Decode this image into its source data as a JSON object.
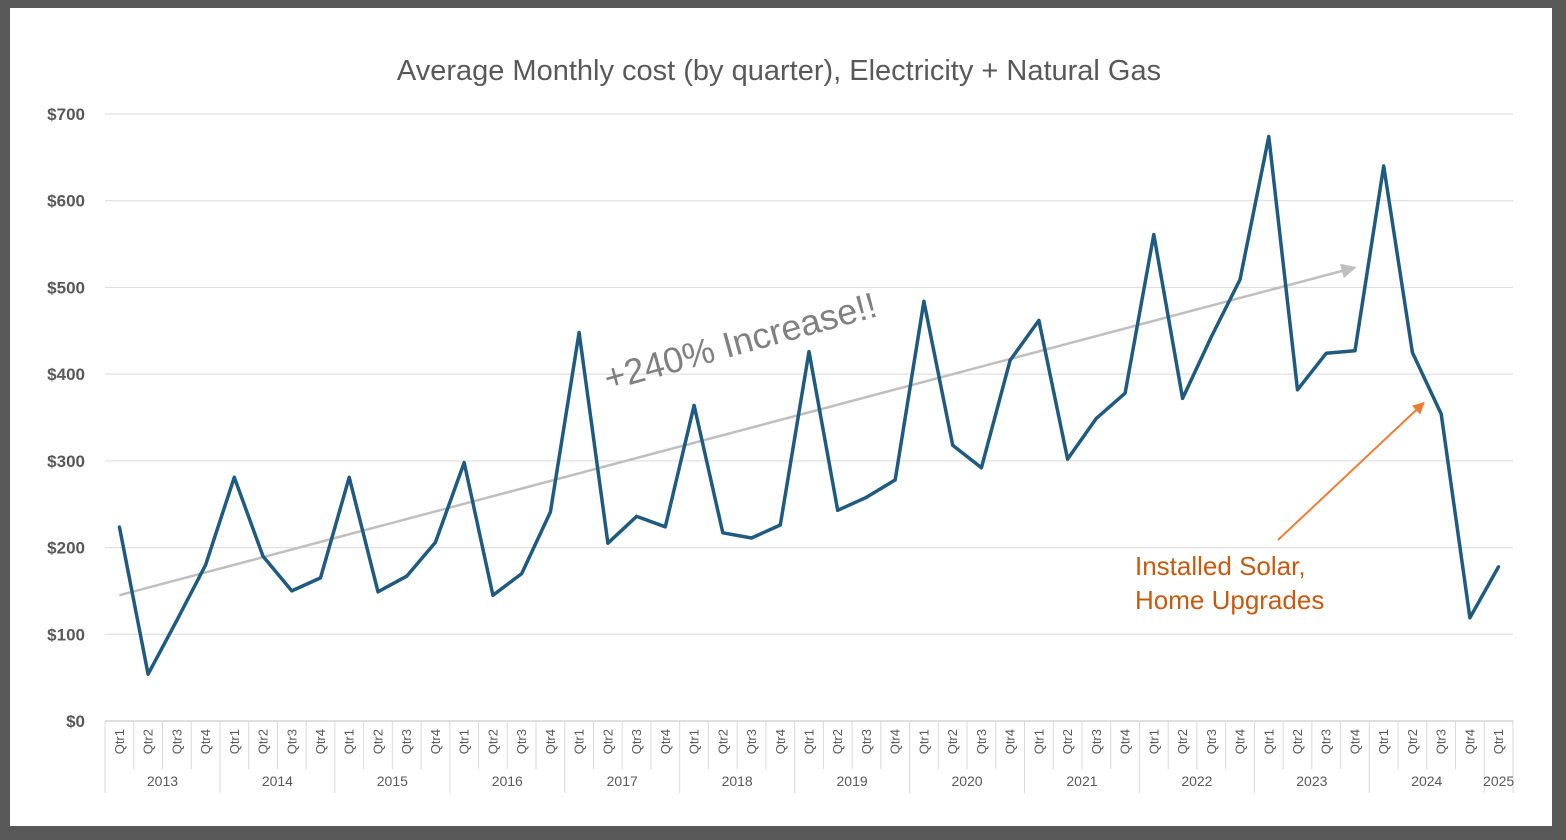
{
  "chart_data": {
    "type": "line",
    "title": "Average Monthly cost (by quarter), Electricity + Natural Gas",
    "xlabel": "",
    "ylabel": "",
    "ylim": [
      0,
      700
    ],
    "yticks": [
      0,
      100,
      200,
      300,
      400,
      500,
      600,
      700
    ],
    "ytick_labels": [
      "$0",
      "$100",
      "$200",
      "$300",
      "$400",
      "$500",
      "$600",
      "$700"
    ],
    "grid": true,
    "colors": {
      "line": "#1f5b80",
      "trend": "#bfbfbf",
      "annotation": "#c55a11",
      "arrow": "#ed7d31",
      "text": "#595959"
    },
    "years": [
      {
        "label": "2013",
        "quarters": [
          "Qtr1",
          "Qtr2",
          "Qtr3",
          "Qtr4"
        ]
      },
      {
        "label": "2014",
        "quarters": [
          "Qtr1",
          "Qtr2",
          "Qtr3",
          "Qtr4"
        ]
      },
      {
        "label": "2015",
        "quarters": [
          "Qtr1",
          "Qtr2",
          "Qtr3",
          "Qtr4"
        ]
      },
      {
        "label": "2016",
        "quarters": [
          "Qtr1",
          "Qtr2",
          "Qtr3",
          "Qtr4"
        ]
      },
      {
        "label": "2017",
        "quarters": [
          "Qtr1",
          "Qtr2",
          "Qtr3",
          "Qtr4"
        ]
      },
      {
        "label": "2018",
        "quarters": [
          "Qtr1",
          "Qtr2",
          "Qtr3",
          "Qtr4"
        ]
      },
      {
        "label": "2019",
        "quarters": [
          "Qtr1",
          "Qtr2",
          "Qtr3",
          "Qtr4"
        ]
      },
      {
        "label": "2020",
        "quarters": [
          "Qtr1",
          "Qtr2",
          "Qtr3",
          "Qtr4"
        ]
      },
      {
        "label": "2021",
        "quarters": [
          "Qtr1",
          "Qtr2",
          "Qtr3",
          "Qtr4"
        ]
      },
      {
        "label": "2022",
        "quarters": [
          "Qtr1",
          "Qtr2",
          "Qtr3",
          "Qtr4"
        ]
      },
      {
        "label": "2023",
        "quarters": [
          "Qtr1",
          "Qtr2",
          "Qtr3",
          "Qtr4"
        ]
      },
      {
        "label": "2024",
        "quarters": [
          "Qtr1",
          "Qtr2",
          "Qtr3",
          "Qtr4"
        ]
      },
      {
        "label": "2025",
        "quarters": [
          "Qtr1"
        ]
      }
    ],
    "series": [
      {
        "name": "Average Monthly cost",
        "values": [
          224,
          54,
          116,
          180,
          281,
          190,
          150,
          165,
          281,
          149,
          167,
          206,
          298,
          145,
          170,
          241,
          448,
          205,
          236,
          224,
          364,
          217,
          211,
          226,
          426,
          243,
          258,
          278,
          484,
          318,
          292,
          416,
          462,
          302,
          349,
          378,
          561,
          372,
          443,
          509,
          674,
          382,
          424,
          427,
          640,
          425,
          354,
          119,
          178
        ]
      }
    ],
    "trendline": {
      "from": [
        0,
        145
      ],
      "to": [
        43,
        523
      ]
    },
    "annotations": [
      {
        "text": "+240% Increase!!"
      },
      {
        "lines": [
          "Installed Solar,",
          "Home Upgrades"
        ],
        "arrow_to": [
          45.4,
          367
        ]
      }
    ]
  }
}
